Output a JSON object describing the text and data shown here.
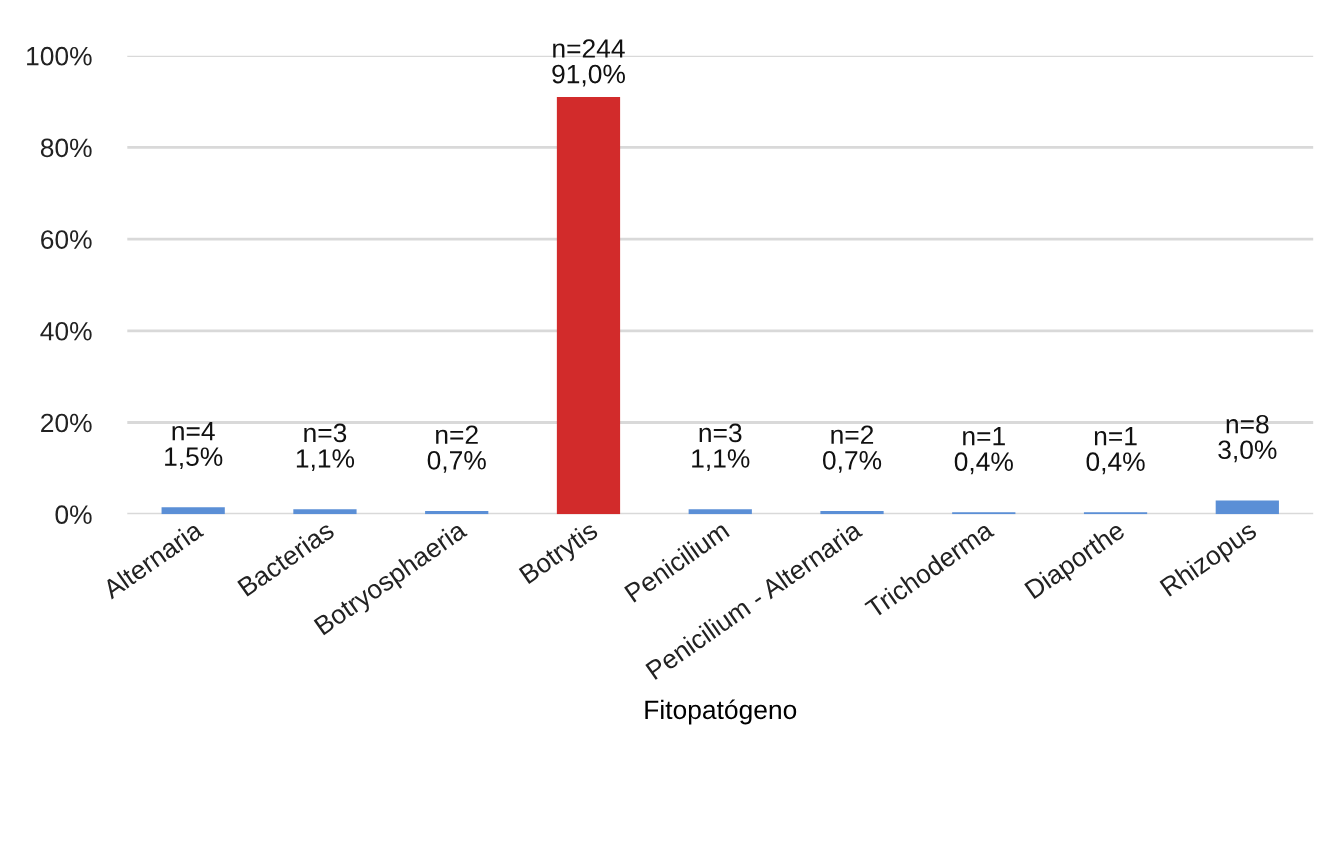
{
  "chart_data": {
    "type": "bar",
    "xlabel": "Fitopatógeno",
    "categories": [
      "Alternaria",
      "Bacterias",
      "Botryosphaeria",
      "Botrytis",
      "Penicilium",
      "Penicilium - Alternaria",
      "Trichoderma",
      "Diaporthe",
      "Rhizopus"
    ],
    "values": [
      1.5,
      1.1,
      0.7,
      91.0,
      1.1,
      0.7,
      0.4,
      0.4,
      3.0
    ],
    "colors": [
      "#5b8fd6",
      "#5b8fd6",
      "#5b8fd6",
      "#d22b2b",
      "#5b8fd6",
      "#5b8fd6",
      "#5b8fd6",
      "#5b8fd6",
      "#5b8fd6"
    ],
    "value_labels": [
      "n=4\n1,5%",
      "n=3\n1,1%",
      "n=2\n0,7%",
      "n=244\n91,0%",
      "n=3\n1,1%",
      "n=2\n0,7%",
      "n=1\n0,4%",
      "n=1\n0,4%",
      "n=8\n3,0%"
    ],
    "ylim": [
      0,
      100
    ],
    "yticks": [
      {
        "value": 0,
        "label": "0%"
      },
      {
        "value": 20,
        "label": "20%"
      },
      {
        "value": 40,
        "label": "40%"
      },
      {
        "value": 60,
        "label": "60%"
      },
      {
        "value": 80,
        "label": "80%"
      },
      {
        "value": 100,
        "label": "100%"
      }
    ],
    "grid": "y"
  }
}
